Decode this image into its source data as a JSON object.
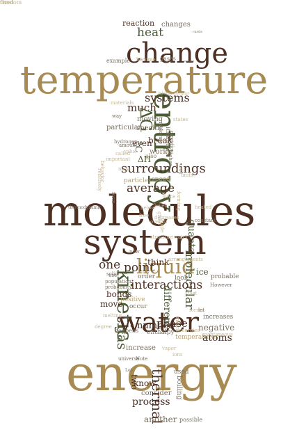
{
  "palette": {
    "gold": "#a88b52",
    "brown": "#4e3023",
    "olive": "#4c5a36",
    "tan": "#b6a274",
    "gray": "#7a7060",
    "light": "#c8b894"
  },
  "words": [
    {
      "text": "reaction",
      "color": "brown"
    },
    {
      "text": "changes",
      "color": "gray"
    },
    {
      "text": "cards",
      "color": "gray"
    },
    {
      "text": "heat",
      "color": "olive"
    },
    {
      "text": "change",
      "color": "brown"
    },
    {
      "text": "example",
      "color": "gray"
    },
    {
      "text": "become",
      "color": "tan"
    },
    {
      "text": "gases",
      "color": "gray"
    },
    {
      "text": "enough",
      "color": "gray"
    },
    {
      "text": "temperature",
      "color": "gold"
    },
    {
      "text": "entropy",
      "color": "olive"
    },
    {
      "text": "particular",
      "color": "gray"
    },
    {
      "text": "systems",
      "color": "brown"
    },
    {
      "text": "much",
      "color": "brown"
    },
    {
      "text": "ΔG",
      "color": "olive"
    },
    {
      "text": "moving",
      "color": "gray"
    },
    {
      "text": "specific",
      "color": "gray"
    },
    {
      "text": "break",
      "color": "brown"
    },
    {
      "text": "even",
      "color": "brown"
    },
    {
      "text": "°C",
      "color": "olive"
    },
    {
      "text": "ΔH",
      "color": "olive"
    },
    {
      "text": "also",
      "color": "gray"
    },
    {
      "text": "work",
      "color": "gray"
    },
    {
      "text": "surroundings",
      "color": "brown"
    },
    {
      "text": "particles",
      "color": "tan"
    },
    {
      "text": "speed",
      "color": "tan"
    },
    {
      "text": "average",
      "color": "brown"
    },
    {
      "text": "molecules",
      "color": "brown"
    },
    {
      "text": "system",
      "color": "brown"
    },
    {
      "text": "quanta",
      "color": "olive"
    },
    {
      "text": "liquid",
      "color": "gold"
    },
    {
      "text": "molecular",
      "color": "olive"
    },
    {
      "text": "one",
      "color": "brown"
    },
    {
      "text": "point",
      "color": "brown"
    },
    {
      "text": "think",
      "color": "brown"
    },
    {
      "text": "ice",
      "color": "olive"
    },
    {
      "text": "kinetic",
      "color": "olive"
    },
    {
      "text": "interactions",
      "color": "brown"
    },
    {
      "text": "order",
      "color": "gray"
    },
    {
      "text": "look",
      "color": "gray"
    },
    {
      "text": "probable",
      "color": "gray"
    },
    {
      "text": "different",
      "color": "olive"
    },
    {
      "text": "bonds",
      "color": "brown"
    },
    {
      "text": "positive",
      "color": "tan"
    },
    {
      "text": "move",
      "color": "brown"
    },
    {
      "text": "occur",
      "color": "gray"
    },
    {
      "text": "water",
      "color": "brown"
    },
    {
      "text": "increases",
      "color": "gray"
    },
    {
      "text": "negative",
      "color": "gray"
    },
    {
      "text": "number",
      "color": "brown"
    },
    {
      "text": "phase",
      "color": "brown"
    },
    {
      "text": "gas",
      "color": "olive"
    },
    {
      "text": "enthalpy",
      "color": "gray"
    },
    {
      "text": "increase",
      "color": "gray"
    },
    {
      "text": "temperatures",
      "color": "tan"
    },
    {
      "text": "atoms",
      "color": "brown"
    },
    {
      "text": "happens",
      "color": "gray"
    },
    {
      "text": "energy",
      "color": "gold"
    },
    {
      "text": "two",
      "color": "brown"
    },
    {
      "text": "know",
      "color": "brown"
    },
    {
      "text": "consider",
      "color": "gray"
    },
    {
      "text": "process",
      "color": "brown"
    },
    {
      "text": "thermal",
      "color": "brown"
    },
    {
      "text": "boiling",
      "color": "gray"
    },
    {
      "text": "used",
      "color": "gray"
    },
    {
      "text": "another",
      "color": "gray"
    },
    {
      "text": "possible",
      "color": "gray"
    },
    {
      "text": "hydrogen",
      "color": "gray"
    },
    {
      "text": "amount",
      "color": "gray"
    },
    {
      "text": "substance",
      "color": "gray"
    },
    {
      "text": "direction",
      "color": "gray"
    },
    {
      "text": "higher",
      "color": "gray"
    },
    {
      "text": "constant",
      "color": "gray"
    },
    {
      "text": "solid",
      "color": "gray"
    },
    {
      "text": "population",
      "color": "gray"
    },
    {
      "text": "probability",
      "color": "gray"
    },
    {
      "text": "let",
      "color": "gray"
    },
    {
      "text": "However",
      "color": "gray"
    },
    {
      "text": "H₂O",
      "color": "gray"
    },
    {
      "text": "molecule",
      "color": "gray"
    },
    {
      "text": "way",
      "color": "gray"
    },
    {
      "text": "form",
      "color": "gray"
    },
    {
      "text": "use",
      "color": "gray"
    },
    {
      "text": "now",
      "color": "gray"
    },
    {
      "text": "thermodynamic",
      "color": "gray"
    },
    {
      "text": "Note",
      "color": "gray"
    },
    {
      "text": "universe",
      "color": "gray"
    },
    {
      "text": "Let",
      "color": "gray"
    },
    {
      "text": "structure",
      "color": "light"
    },
    {
      "text": "water",
      "color": "light"
    },
    {
      "text": "heated",
      "color": "light"
    },
    {
      "text": "units",
      "color": "light"
    },
    {
      "text": "arrangements",
      "color": "light"
    },
    {
      "text": "overall",
      "color": "light"
    },
    {
      "text": "states",
      "color": "light"
    },
    {
      "text": "important",
      "color": "light"
    },
    {
      "text": "decreases",
      "color": "light"
    },
    {
      "text": "mass",
      "color": "light"
    },
    {
      "text": "relatively",
      "color": "light"
    },
    {
      "text": "spontaneous",
      "color": "light"
    },
    {
      "text": "intermolecular",
      "color": "light"
    },
    {
      "text": "materials",
      "color": "light"
    },
    {
      "text": "behavior",
      "color": "light"
    },
    {
      "text": "called",
      "color": "light"
    },
    {
      "text": "value",
      "color": "light"
    },
    {
      "text": "cold",
      "color": "light"
    },
    {
      "text": "forming",
      "color": "light"
    },
    {
      "text": "since",
      "color": "light"
    },
    {
      "text": "level",
      "color": "light"
    },
    {
      "text": "below",
      "color": "light"
    },
    {
      "text": "given",
      "color": "light"
    },
    {
      "text": "means",
      "color": "light"
    },
    {
      "text": "forms",
      "color": "light"
    },
    {
      "text": "fact",
      "color": "light"
    },
    {
      "text": "free",
      "color": "light"
    },
    {
      "text": "energies",
      "color": "light"
    },
    {
      "text": "single",
      "color": "light"
    },
    {
      "text": "vapor",
      "color": "light"
    },
    {
      "text": "ions",
      "color": "light"
    },
    {
      "text": "degree",
      "color": "light"
    },
    {
      "text": "melting",
      "color": "light"
    },
    {
      "text": "random",
      "color": "light"
    },
    {
      "text": "Or",
      "color": "light"
    },
    {
      "text": "fixed",
      "color": "light"
    }
  ]
}
